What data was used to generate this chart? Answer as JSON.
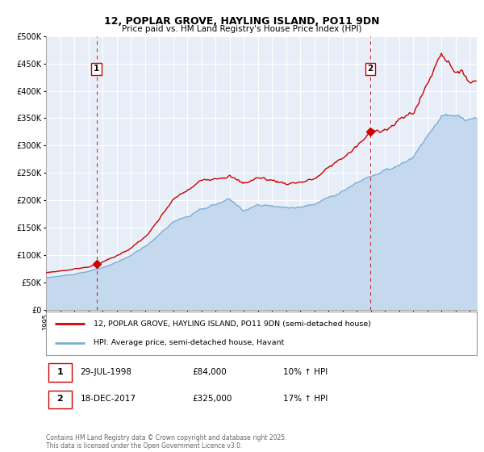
{
  "title": "12, POPLAR GROVE, HAYLING ISLAND, PO11 9DN",
  "subtitle": "Price paid vs. HM Land Registry's House Price Index (HPI)",
  "legend_line1": "12, POPLAR GROVE, HAYLING ISLAND, PO11 9DN (semi-detached house)",
  "legend_line2": "HPI: Average price, semi-detached house, Havant",
  "sale1_date": "29-JUL-1998",
  "sale1_price": "£84,000",
  "sale1_hpi": "10% ↑ HPI",
  "sale2_date": "18-DEC-2017",
  "sale2_price": "£325,000",
  "sale2_hpi": "17% ↑ HPI",
  "footer": "Contains HM Land Registry data © Crown copyright and database right 2025.\nThis data is licensed under the Open Government Licence v3.0.",
  "property_color": "#cc0000",
  "hpi_color": "#7bafd4",
  "hpi_fill_color": "#c5d9ee",
  "background_color": "#ffffff",
  "plot_bg_color": "#e8eef8",
  "grid_color": "#ffffff",
  "ylim": [
    0,
    500000
  ],
  "yticks": [
    0,
    50000,
    100000,
    150000,
    200000,
    250000,
    300000,
    350000,
    400000,
    450000,
    500000
  ],
  "sale1_year": 1998.57,
  "sale2_year": 2017.96,
  "sale1_value": 84000,
  "sale2_value": 325000,
  "xlim_start": 1995.0,
  "xlim_end": 2025.5
}
